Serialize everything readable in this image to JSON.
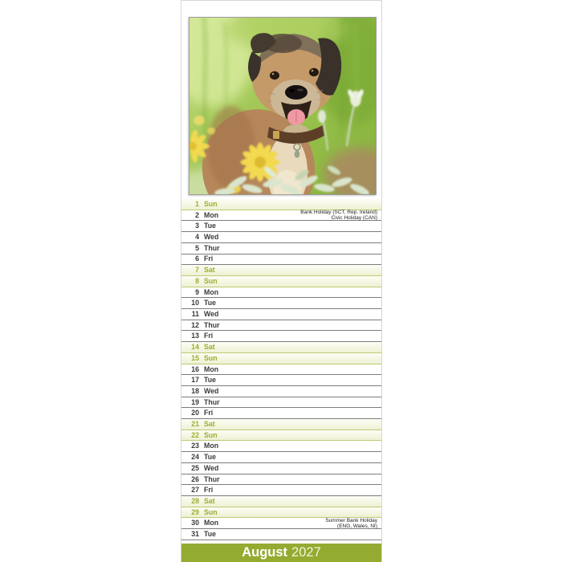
{
  "calendar": {
    "month": "August",
    "year": "2027",
    "photo_description": "Border Terrier dog standing in green grass with yellow daisies and pale foliage",
    "colors": {
      "banner_green": "#94ab31",
      "weekend_text_green": "#9cad31",
      "weekend_band": "#eef1d3",
      "weekday_line": "#7d7d7d",
      "weekend_line": "#c0ca74"
    },
    "rows": [
      {
        "date": "1",
        "day": "Sun",
        "weekend": true,
        "notes": []
      },
      {
        "date": "2",
        "day": "Mon",
        "weekend": false,
        "notes": [
          "Bank Holiday (SCT, Rep. Ireland)",
          "Civic Holiday (CAN)"
        ]
      },
      {
        "date": "3",
        "day": "Tue",
        "weekend": false,
        "notes": []
      },
      {
        "date": "4",
        "day": "Wed",
        "weekend": false,
        "notes": []
      },
      {
        "date": "5",
        "day": "Thur",
        "weekend": false,
        "notes": []
      },
      {
        "date": "6",
        "day": "Fri",
        "weekend": false,
        "notes": []
      },
      {
        "date": "7",
        "day": "Sat",
        "weekend": true,
        "notes": []
      },
      {
        "date": "8",
        "day": "Sun",
        "weekend": true,
        "notes": []
      },
      {
        "date": "9",
        "day": "Mon",
        "weekend": false,
        "notes": []
      },
      {
        "date": "10",
        "day": "Tue",
        "weekend": false,
        "notes": []
      },
      {
        "date": "11",
        "day": "Wed",
        "weekend": false,
        "notes": []
      },
      {
        "date": "12",
        "day": "Thur",
        "weekend": false,
        "notes": []
      },
      {
        "date": "13",
        "day": "Fri",
        "weekend": false,
        "notes": []
      },
      {
        "date": "14",
        "day": "Sat",
        "weekend": true,
        "notes": []
      },
      {
        "date": "15",
        "day": "Sun",
        "weekend": true,
        "notes": []
      },
      {
        "date": "16",
        "day": "Mon",
        "weekend": false,
        "notes": []
      },
      {
        "date": "17",
        "day": "Tue",
        "weekend": false,
        "notes": []
      },
      {
        "date": "18",
        "day": "Wed",
        "weekend": false,
        "notes": []
      },
      {
        "date": "19",
        "day": "Thur",
        "weekend": false,
        "notes": []
      },
      {
        "date": "20",
        "day": "Fri",
        "weekend": false,
        "notes": []
      },
      {
        "date": "21",
        "day": "Sat",
        "weekend": true,
        "notes": []
      },
      {
        "date": "22",
        "day": "Sun",
        "weekend": true,
        "notes": []
      },
      {
        "date": "23",
        "day": "Mon",
        "weekend": false,
        "notes": []
      },
      {
        "date": "24",
        "day": "Tue",
        "weekend": false,
        "notes": []
      },
      {
        "date": "25",
        "day": "Wed",
        "weekend": false,
        "notes": []
      },
      {
        "date": "26",
        "day": "Thur",
        "weekend": false,
        "notes": []
      },
      {
        "date": "27",
        "day": "Fri",
        "weekend": false,
        "notes": []
      },
      {
        "date": "28",
        "day": "Sat",
        "weekend": true,
        "notes": []
      },
      {
        "date": "29",
        "day": "Sun",
        "weekend": true,
        "notes": []
      },
      {
        "date": "30",
        "day": "Mon",
        "weekend": false,
        "notes": [
          "Summer Bank Holiday",
          "(ENG, Wales, NI)"
        ]
      },
      {
        "date": "31",
        "day": "Tue",
        "weekend": false,
        "notes": []
      }
    ]
  }
}
